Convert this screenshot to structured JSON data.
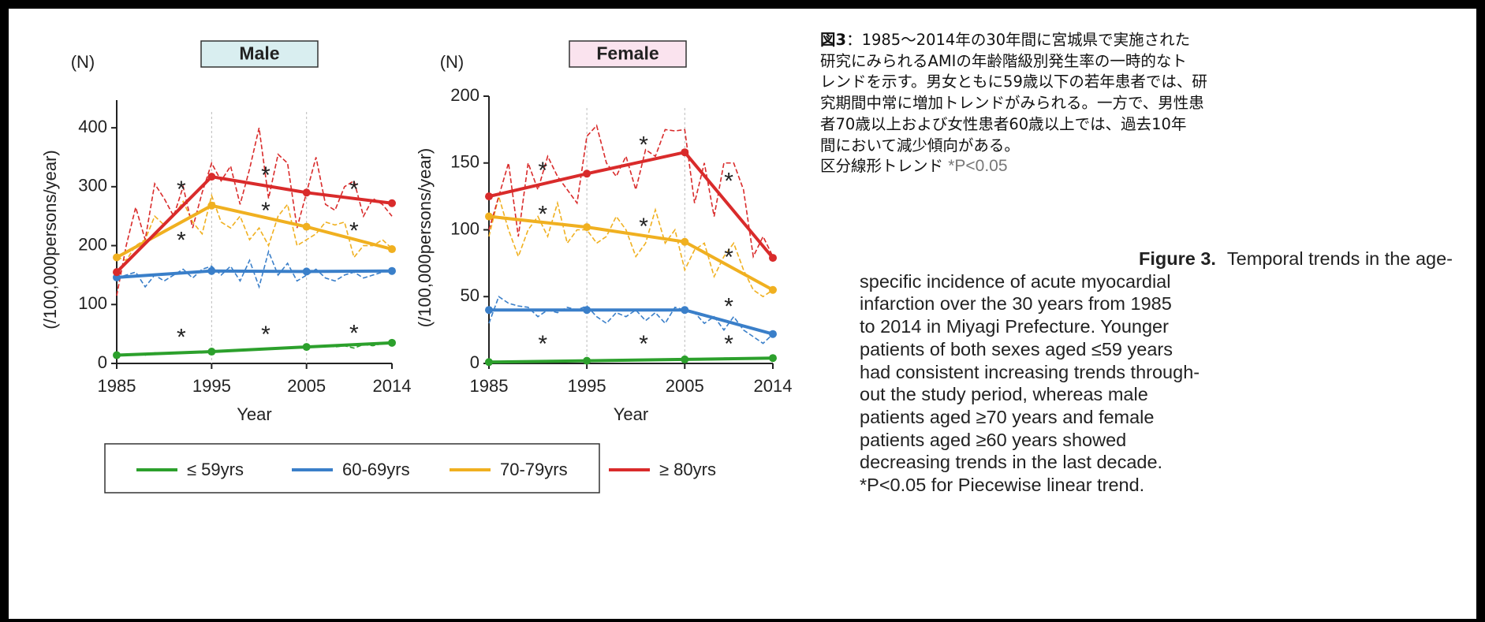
{
  "chart_data": [
    {
      "type": "line",
      "title": "Male",
      "unit_label": "(N)",
      "ylabel": "(/100,000persons/year)",
      "xlabel": "Year",
      "xlim": [
        1985,
        2014
      ],
      "xticks": [
        1985,
        1995,
        2005,
        2014
      ],
      "ylim": [
        0,
        447
      ],
      "yticks": [
        0,
        100,
        200,
        300,
        400
      ],
      "vgrid": true,
      "title_color": "#d9eef0",
      "x": [
        1985,
        1986,
        1987,
        1988,
        1989,
        1990,
        1991,
        1992,
        1993,
        1994,
        1995,
        1996,
        1997,
        1998,
        1999,
        2000,
        2001,
        2002,
        2003,
        2004,
        2005,
        2006,
        2007,
        2008,
        2009,
        2010,
        2011,
        2012,
        2013,
        2014
      ],
      "trend_x": [
        1985,
        1995,
        2005,
        2014
      ],
      "series": [
        {
          "name": "≤ 59yrs",
          "color": "#2ca02c",
          "values": [
            14,
            15,
            16,
            14,
            18,
            17,
            18,
            18,
            19,
            20,
            20,
            21,
            22,
            22,
            24,
            25,
            25,
            26,
            27,
            28,
            28,
            29,
            30,
            28,
            30,
            26,
            32,
            30,
            34,
            35
          ],
          "trend": [
            14,
            20,
            28,
            35
          ]
        },
        {
          "name": "60-69yrs",
          "color": "#3a7fc9",
          "values": [
            145,
            150,
            155,
            130,
            150,
            140,
            150,
            160,
            145,
            160,
            165,
            150,
            165,
            140,
            175,
            130,
            190,
            150,
            170,
            140,
            150,
            160,
            145,
            140,
            150,
            155,
            145,
            150,
            155,
            160
          ],
          "trend": [
            146,
            157,
            156,
            157
          ]
        },
        {
          "name": "70-79yrs",
          "color": "#f0b020",
          "values": [
            180,
            175,
            200,
            210,
            250,
            235,
            250,
            275,
            240,
            220,
            285,
            240,
            230,
            250,
            210,
            230,
            200,
            250,
            270,
            200,
            210,
            220,
            240,
            235,
            240,
            180,
            200,
            200,
            210,
            195
          ],
          "trend": [
            180,
            268,
            232,
            194
          ]
        },
        {
          "name": "≥ 80yrs",
          "color": "#d92b2b",
          "values": [
            115,
            200,
            265,
            210,
            305,
            280,
            250,
            300,
            230,
            290,
            340,
            310,
            335,
            270,
            330,
            400,
            280,
            355,
            340,
            230,
            290,
            350,
            270,
            260,
            300,
            310,
            250,
            280,
            270,
            250
          ],
          "trend": [
            155,
            317,
            290,
            272
          ]
        }
      ],
      "annotations": [
        {
          "text": "*",
          "x": 1991.8,
          "y": 301
        },
        {
          "text": "*",
          "x": 1991.8,
          "y": 215
        },
        {
          "text": "*",
          "x": 2000.7,
          "y": 325
        },
        {
          "text": "*",
          "x": 2000.7,
          "y": 265
        },
        {
          "text": "*",
          "x": 2010.0,
          "y": 301
        },
        {
          "text": "*",
          "x": 2010.0,
          "y": 231
        },
        {
          "text": "*",
          "x": 1991.8,
          "y": 50
        },
        {
          "text": "*",
          "x": 2000.7,
          "y": 55
        },
        {
          "text": "*",
          "x": 2010.0,
          "y": 57
        }
      ]
    },
    {
      "type": "line",
      "title": "Female",
      "unit_label": "(N)",
      "ylabel": "(/100,000persons/year)",
      "xlabel": "Year",
      "xlim": [
        1985,
        2014
      ],
      "xticks": [
        1985,
        1995,
        2005,
        2014
      ],
      "ylim": [
        0,
        200
      ],
      "yticks": [
        0,
        50,
        100,
        150,
        200
      ],
      "vgrid": true,
      "title_color": "#fae3ee",
      "x": [
        1985,
        1986,
        1987,
        1988,
        1989,
        1990,
        1991,
        1992,
        1993,
        1994,
        1995,
        1996,
        1997,
        1998,
        1999,
        2000,
        2001,
        2002,
        2003,
        2004,
        2005,
        2006,
        2007,
        2008,
        2009,
        2010,
        2011,
        2012,
        2013,
        2014
      ],
      "trend_x": [
        1985,
        1995,
        2005,
        2014
      ],
      "series": [
        {
          "color": "#2ca02c",
          "values": [
            1,
            1,
            1,
            1,
            1,
            2,
            2,
            2,
            2,
            2,
            2,
            2,
            2,
            2,
            2,
            3,
            3,
            3,
            3,
            3,
            3,
            3,
            3,
            3,
            4,
            4,
            4,
            4,
            4,
            4
          ],
          "trend": [
            1,
            2,
            3,
            4
          ]
        },
        {
          "color": "#3a7fc9",
          "values": [
            30,
            50,
            45,
            43,
            42,
            35,
            40,
            38,
            42,
            40,
            43,
            35,
            30,
            38,
            35,
            40,
            32,
            38,
            30,
            42,
            40,
            38,
            30,
            35,
            25,
            35,
            25,
            20,
            15,
            22
          ],
          "trend": [
            40,
            40,
            40,
            22
          ]
        },
        {
          "color": "#f0b020",
          "values": [
            95,
            125,
            100,
            80,
            100,
            110,
            95,
            120,
            90,
            100,
            100,
            90,
            95,
            110,
            100,
            80,
            90,
            115,
            90,
            100,
            70,
            85,
            90,
            65,
            80,
            90,
            70,
            55,
            50,
            55
          ],
          "trend": [
            110,
            102,
            91,
            55
          ]
        },
        {
          "color": "#d92b2b",
          "values": [
            100,
            125,
            150,
            95,
            150,
            130,
            155,
            140,
            130,
            120,
            170,
            178,
            150,
            140,
            155,
            130,
            160,
            155,
            175,
            174,
            175,
            120,
            150,
            110,
            150,
            150,
            130,
            80,
            95,
            80
          ],
          "trend": [
            125,
            142,
            158,
            79
          ]
        }
      ],
      "annotations": [
        {
          "text": "*",
          "x": 1990.5,
          "y": 147
        },
        {
          "text": "*",
          "x": 1990.5,
          "y": 114
        },
        {
          "text": "*",
          "x": 2000.8,
          "y": 166
        },
        {
          "text": "*",
          "x": 2000.8,
          "y": 105
        },
        {
          "text": "*",
          "x": 2009.5,
          "y": 139
        },
        {
          "text": "*",
          "x": 2009.5,
          "y": 82
        },
        {
          "text": "*",
          "x": 2009.5,
          "y": 45
        },
        {
          "text": "*",
          "x": 1990.5,
          "y": 17
        },
        {
          "text": "*",
          "x": 2000.8,
          "y": 17
        },
        {
          "text": "*",
          "x": 2009.5,
          "y": 17
        }
      ]
    }
  ],
  "caption_ja": {
    "label": "図3",
    "lines": [
      "：1985〜2014年の30年間に宮城県で実施された",
      "研究にみられるAMIの年齢階級別発生率の一時的なト",
      "レンドを示す。男女ともに59歳以下の若年患者では、研",
      "究期間中常に増加トレンドがみられる。一方で、男性患",
      "者70歳以上および女性患者60歳以上では、過去10年",
      "間において減少傾向がある。",
      "区分線形トレンド"
    ],
    "note": "*P<0.05"
  },
  "caption_en": {
    "label": "Figure 3.",
    "lines": [
      "Temporal trends in the age-",
      "specific incidence of acute myocardial",
      "infarction over the 30 years from 1985",
      "to 2014 in Miyagi Prefecture. Younger",
      "patients of both sexes aged ≤59 years",
      "had consistent increasing trends through-",
      "out the study period, whereas male",
      "patients aged ≥70 years and female",
      "patients aged ≥60 years showed",
      "decreasing trends in the last decade.",
      "*P<0.05 for Piecewise linear trend."
    ]
  }
}
